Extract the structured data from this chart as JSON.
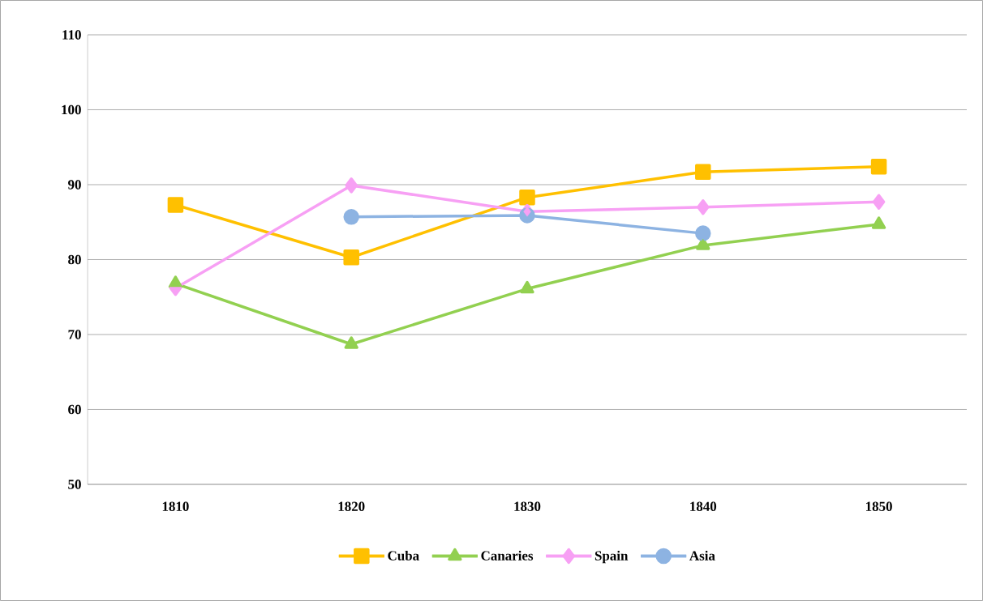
{
  "chart_data": {
    "type": "line",
    "categories": [
      "1810",
      "1820",
      "1830",
      "1840",
      "1850"
    ],
    "series": [
      {
        "name": "Cuba",
        "color": "#ffc000",
        "marker": "square",
        "values": [
          87.3,
          80.3,
          88.3,
          91.7,
          92.4
        ]
      },
      {
        "name": "Canaries",
        "color": "#92d050",
        "marker": "triangle",
        "values": [
          76.8,
          68.7,
          76.1,
          81.9,
          84.7
        ]
      },
      {
        "name": "Spain",
        "color": "#f7a0f4",
        "marker": "diamond",
        "values": [
          76.2,
          89.9,
          86.4,
          87.0,
          87.7
        ]
      },
      {
        "name": "Asia",
        "color": "#8db3e2",
        "marker": "circle",
        "values": [
          null,
          85.7,
          85.9,
          83.5,
          null
        ]
      }
    ],
    "ylim": [
      50,
      110
    ],
    "yticks": [
      50,
      60,
      70,
      80,
      90,
      100,
      110
    ],
    "grid": "y",
    "legend": "bottom",
    "line_style": "solid"
  }
}
